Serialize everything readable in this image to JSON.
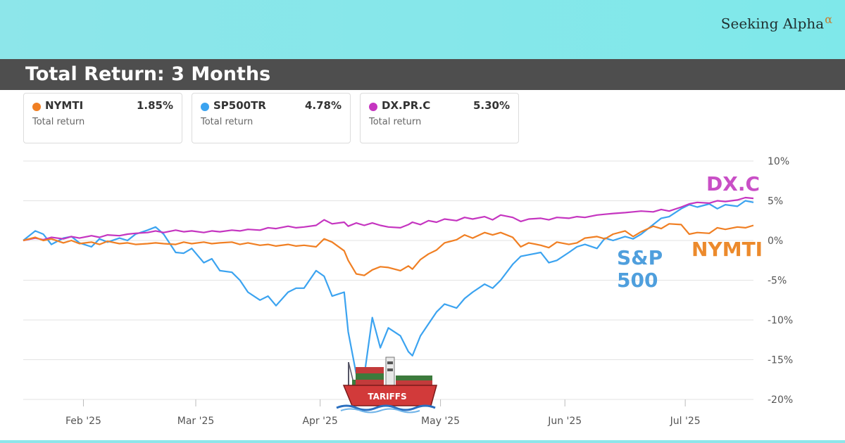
{
  "brand": {
    "name": "Seeking Alpha",
    "symbol": "α"
  },
  "header": {
    "title": "Total Return: 3 Months"
  },
  "cards": [
    {
      "ticker": "NYMTI",
      "value": "1.85%",
      "sublabel": "Total return",
      "color": "#f07f23"
    },
    {
      "ticker": "SP500TR",
      "value": "4.78%",
      "sublabel": "Total return",
      "color": "#3ba3f0"
    },
    {
      "ticker": "DX.PR.C",
      "value": "5.30%",
      "sublabel": "Total return",
      "color": "#c535c0"
    }
  ],
  "annotations": {
    "dxc": "DX.C",
    "nymti": "NYMTI",
    "sp_line1": "S&P",
    "sp_line2": "500",
    "ship": "TARIFFS"
  },
  "chart_data": {
    "type": "line",
    "y_unit": "%",
    "ylim": [
      -20,
      10
    ],
    "yticks": [
      10,
      5,
      0,
      -5,
      -10,
      -15,
      -20
    ],
    "ytick_labels": [
      "10%",
      "5%",
      "0%",
      "-5%",
      "-10%",
      "-15%",
      "-20%"
    ],
    "xlim": [
      "2025-01-17",
      "2025-07-18"
    ],
    "xticks": [
      "2025-02-01",
      "2025-03-01",
      "2025-04-01",
      "2025-05-01",
      "2025-06-01",
      "2025-07-01"
    ],
    "xtick_labels": [
      "Feb '25",
      "Mar '25",
      "Apr '25",
      "May '25",
      "Jun '25",
      "Jul '25"
    ],
    "grid": true,
    "series": [
      {
        "name": "SP500TR",
        "color": "#3ba3f0",
        "points": [
          [
            "2025-01-17",
            0
          ],
          [
            "2025-01-20",
            1.2
          ],
          [
            "2025-01-22",
            0.8
          ],
          [
            "2025-01-24",
            -0.5
          ],
          [
            "2025-01-27",
            0.3
          ],
          [
            "2025-01-29",
            0.5
          ],
          [
            "2025-01-31",
            -0.3
          ],
          [
            "2025-02-03",
            -0.8
          ],
          [
            "2025-02-05",
            0.2
          ],
          [
            "2025-02-07",
            -0.2
          ],
          [
            "2025-02-10",
            0.3
          ],
          [
            "2025-02-12",
            0.0
          ],
          [
            "2025-02-14",
            0.8
          ],
          [
            "2025-02-17",
            1.3
          ],
          [
            "2025-02-19",
            1.7
          ],
          [
            "2025-02-21",
            0.8
          ],
          [
            "2025-02-24",
            -1.5
          ],
          [
            "2025-02-26",
            -1.6
          ],
          [
            "2025-02-28",
            -1.0
          ],
          [
            "2025-03-03",
            -2.8
          ],
          [
            "2025-03-05",
            -2.3
          ],
          [
            "2025-03-07",
            -3.8
          ],
          [
            "2025-03-10",
            -4.0
          ],
          [
            "2025-03-12",
            -5.0
          ],
          [
            "2025-03-14",
            -6.5
          ],
          [
            "2025-03-17",
            -7.5
          ],
          [
            "2025-03-19",
            -7.0
          ],
          [
            "2025-03-21",
            -8.2
          ],
          [
            "2025-03-24",
            -6.5
          ],
          [
            "2025-03-26",
            -6.0
          ],
          [
            "2025-03-28",
            -6.0
          ],
          [
            "2025-03-31",
            -3.8
          ],
          [
            "2025-04-02",
            -4.5
          ],
          [
            "2025-04-04",
            -7.0
          ],
          [
            "2025-04-07",
            -6.5
          ],
          [
            "2025-04-08",
            -11.5
          ],
          [
            "2025-04-10",
            -16.8
          ],
          [
            "2025-04-12",
            -17.0
          ],
          [
            "2025-04-14",
            -9.7
          ],
          [
            "2025-04-16",
            -13.5
          ],
          [
            "2025-04-18",
            -11.0
          ],
          [
            "2025-04-21",
            -12.0
          ],
          [
            "2025-04-23",
            -14.0
          ],
          [
            "2025-04-24",
            -14.5
          ],
          [
            "2025-04-26",
            -12.0
          ],
          [
            "2025-04-28",
            -10.5
          ],
          [
            "2025-04-30",
            -9.0
          ],
          [
            "2025-05-02",
            -8.0
          ],
          [
            "2025-05-05",
            -8.5
          ],
          [
            "2025-05-07",
            -7.3
          ],
          [
            "2025-05-09",
            -6.5
          ],
          [
            "2025-05-12",
            -5.5
          ],
          [
            "2025-05-14",
            -6.0
          ],
          [
            "2025-05-16",
            -5.0
          ],
          [
            "2025-05-19",
            -3.0
          ],
          [
            "2025-05-21",
            -2.0
          ],
          [
            "2025-05-23",
            -1.8
          ],
          [
            "2025-05-26",
            -1.5
          ],
          [
            "2025-05-28",
            -2.8
          ],
          [
            "2025-05-30",
            -2.5
          ],
          [
            "2025-06-02",
            -1.5
          ],
          [
            "2025-06-04",
            -0.8
          ],
          [
            "2025-06-06",
            -0.5
          ],
          [
            "2025-06-09",
            -1.0
          ],
          [
            "2025-06-11",
            0.3
          ],
          [
            "2025-06-13",
            0.0
          ],
          [
            "2025-06-16",
            0.5
          ],
          [
            "2025-06-18",
            0.2
          ],
          [
            "2025-06-20",
            0.8
          ],
          [
            "2025-06-23",
            2.0
          ],
          [
            "2025-06-25",
            2.8
          ],
          [
            "2025-06-27",
            3.0
          ],
          [
            "2025-06-30",
            4.0
          ],
          [
            "2025-07-02",
            4.5
          ],
          [
            "2025-07-04",
            4.2
          ],
          [
            "2025-07-07",
            4.6
          ],
          [
            "2025-07-09",
            4.0
          ],
          [
            "2025-07-11",
            4.5
          ],
          [
            "2025-07-14",
            4.3
          ],
          [
            "2025-07-16",
            5.0
          ],
          [
            "2025-07-18",
            4.8
          ]
        ]
      },
      {
        "name": "DX.PR.C",
        "color": "#c535c0",
        "points": [
          [
            "2025-01-17",
            0
          ],
          [
            "2025-01-20",
            0.3
          ],
          [
            "2025-01-22",
            0.1
          ],
          [
            "2025-01-24",
            0.4
          ],
          [
            "2025-01-27",
            0.2
          ],
          [
            "2025-01-29",
            0.5
          ],
          [
            "2025-01-31",
            0.3
          ],
          [
            "2025-02-03",
            0.6
          ],
          [
            "2025-02-05",
            0.4
          ],
          [
            "2025-02-07",
            0.7
          ],
          [
            "2025-02-10",
            0.6
          ],
          [
            "2025-02-12",
            0.8
          ],
          [
            "2025-02-14",
            0.9
          ],
          [
            "2025-02-17",
            1.0
          ],
          [
            "2025-02-19",
            1.2
          ],
          [
            "2025-02-21",
            1.0
          ],
          [
            "2025-02-24",
            1.3
          ],
          [
            "2025-02-26",
            1.1
          ],
          [
            "2025-02-28",
            1.2
          ],
          [
            "2025-03-03",
            1.0
          ],
          [
            "2025-03-05",
            1.2
          ],
          [
            "2025-03-07",
            1.1
          ],
          [
            "2025-03-10",
            1.3
          ],
          [
            "2025-03-12",
            1.2
          ],
          [
            "2025-03-14",
            1.4
          ],
          [
            "2025-03-17",
            1.3
          ],
          [
            "2025-03-19",
            1.6
          ],
          [
            "2025-03-21",
            1.5
          ],
          [
            "2025-03-24",
            1.8
          ],
          [
            "2025-03-26",
            1.6
          ],
          [
            "2025-03-28",
            1.7
          ],
          [
            "2025-03-31",
            1.9
          ],
          [
            "2025-04-02",
            2.6
          ],
          [
            "2025-04-04",
            2.1
          ],
          [
            "2025-04-07",
            2.3
          ],
          [
            "2025-04-08",
            1.8
          ],
          [
            "2025-04-10",
            2.2
          ],
          [
            "2025-04-12",
            1.9
          ],
          [
            "2025-04-14",
            2.2
          ],
          [
            "2025-04-16",
            1.9
          ],
          [
            "2025-04-18",
            1.7
          ],
          [
            "2025-04-21",
            1.6
          ],
          [
            "2025-04-23",
            2.0
          ],
          [
            "2025-04-24",
            2.3
          ],
          [
            "2025-04-26",
            2.0
          ],
          [
            "2025-04-28",
            2.5
          ],
          [
            "2025-04-30",
            2.3
          ],
          [
            "2025-05-02",
            2.7
          ],
          [
            "2025-05-05",
            2.5
          ],
          [
            "2025-05-07",
            2.9
          ],
          [
            "2025-05-09",
            2.7
          ],
          [
            "2025-05-12",
            3.0
          ],
          [
            "2025-05-14",
            2.6
          ],
          [
            "2025-05-16",
            3.2
          ],
          [
            "2025-05-19",
            2.9
          ],
          [
            "2025-05-21",
            2.4
          ],
          [
            "2025-05-23",
            2.7
          ],
          [
            "2025-05-26",
            2.8
          ],
          [
            "2025-05-28",
            2.6
          ],
          [
            "2025-05-30",
            2.9
          ],
          [
            "2025-06-02",
            2.8
          ],
          [
            "2025-06-04",
            3.0
          ],
          [
            "2025-06-06",
            2.9
          ],
          [
            "2025-06-09",
            3.2
          ],
          [
            "2025-06-11",
            3.3
          ],
          [
            "2025-06-13",
            3.4
          ],
          [
            "2025-06-16",
            3.5
          ],
          [
            "2025-06-18",
            3.6
          ],
          [
            "2025-06-20",
            3.7
          ],
          [
            "2025-06-23",
            3.6
          ],
          [
            "2025-06-25",
            3.9
          ],
          [
            "2025-06-27",
            3.7
          ],
          [
            "2025-06-30",
            4.2
          ],
          [
            "2025-07-02",
            4.6
          ],
          [
            "2025-07-04",
            4.8
          ],
          [
            "2025-07-07",
            4.7
          ],
          [
            "2025-07-09",
            5.0
          ],
          [
            "2025-07-11",
            4.9
          ],
          [
            "2025-07-14",
            5.1
          ],
          [
            "2025-07-16",
            5.4
          ],
          [
            "2025-07-18",
            5.3
          ]
        ]
      },
      {
        "name": "NYMTI",
        "color": "#f07f23",
        "points": [
          [
            "2025-01-17",
            0
          ],
          [
            "2025-01-20",
            0.4
          ],
          [
            "2025-01-22",
            0.0
          ],
          [
            "2025-01-24",
            0.2
          ],
          [
            "2025-01-27",
            -0.3
          ],
          [
            "2025-01-29",
            0.0
          ],
          [
            "2025-01-31",
            -0.4
          ],
          [
            "2025-02-03",
            -0.2
          ],
          [
            "2025-02-05",
            -0.5
          ],
          [
            "2025-02-07",
            -0.1
          ],
          [
            "2025-02-10",
            -0.4
          ],
          [
            "2025-02-12",
            -0.3
          ],
          [
            "2025-02-14",
            -0.5
          ],
          [
            "2025-02-17",
            -0.4
          ],
          [
            "2025-02-19",
            -0.3
          ],
          [
            "2025-02-21",
            -0.4
          ],
          [
            "2025-02-24",
            -0.5
          ],
          [
            "2025-02-26",
            -0.2
          ],
          [
            "2025-02-28",
            -0.4
          ],
          [
            "2025-03-03",
            -0.2
          ],
          [
            "2025-03-05",
            -0.4
          ],
          [
            "2025-03-07",
            -0.3
          ],
          [
            "2025-03-10",
            -0.2
          ],
          [
            "2025-03-12",
            -0.5
          ],
          [
            "2025-03-14",
            -0.3
          ],
          [
            "2025-03-17",
            -0.6
          ],
          [
            "2025-03-19",
            -0.5
          ],
          [
            "2025-03-21",
            -0.7
          ],
          [
            "2025-03-24",
            -0.5
          ],
          [
            "2025-03-26",
            -0.7
          ],
          [
            "2025-03-28",
            -0.6
          ],
          [
            "2025-03-31",
            -0.8
          ],
          [
            "2025-04-02",
            0.2
          ],
          [
            "2025-04-04",
            -0.2
          ],
          [
            "2025-04-07",
            -1.3
          ],
          [
            "2025-04-08",
            -2.5
          ],
          [
            "2025-04-10",
            -4.2
          ],
          [
            "2025-04-12",
            -4.4
          ],
          [
            "2025-04-14",
            -3.7
          ],
          [
            "2025-04-16",
            -3.3
          ],
          [
            "2025-04-18",
            -3.4
          ],
          [
            "2025-04-21",
            -3.8
          ],
          [
            "2025-04-23",
            -3.2
          ],
          [
            "2025-04-24",
            -3.6
          ],
          [
            "2025-04-26",
            -2.4
          ],
          [
            "2025-04-28",
            -1.7
          ],
          [
            "2025-04-30",
            -1.2
          ],
          [
            "2025-05-02",
            -0.3
          ],
          [
            "2025-05-05",
            0.1
          ],
          [
            "2025-05-07",
            0.7
          ],
          [
            "2025-05-09",
            0.3
          ],
          [
            "2025-05-12",
            1.0
          ],
          [
            "2025-05-14",
            0.7
          ],
          [
            "2025-05-16",
            1.0
          ],
          [
            "2025-05-19",
            0.4
          ],
          [
            "2025-05-21",
            -0.8
          ],
          [
            "2025-05-23",
            -0.3
          ],
          [
            "2025-05-26",
            -0.6
          ],
          [
            "2025-05-28",
            -0.9
          ],
          [
            "2025-05-30",
            -0.2
          ],
          [
            "2025-06-02",
            -0.5
          ],
          [
            "2025-06-04",
            -0.3
          ],
          [
            "2025-06-06",
            0.3
          ],
          [
            "2025-06-09",
            0.5
          ],
          [
            "2025-06-11",
            0.2
          ],
          [
            "2025-06-13",
            0.8
          ],
          [
            "2025-06-16",
            1.2
          ],
          [
            "2025-06-18",
            0.5
          ],
          [
            "2025-06-20",
            1.1
          ],
          [
            "2025-06-23",
            1.8
          ],
          [
            "2025-06-25",
            1.5
          ],
          [
            "2025-06-27",
            2.1
          ],
          [
            "2025-06-30",
            2.0
          ],
          [
            "2025-07-02",
            0.8
          ],
          [
            "2025-07-04",
            1.0
          ],
          [
            "2025-07-07",
            0.9
          ],
          [
            "2025-07-09",
            1.6
          ],
          [
            "2025-07-11",
            1.4
          ],
          [
            "2025-07-14",
            1.7
          ],
          [
            "2025-07-16",
            1.6
          ],
          [
            "2025-07-18",
            1.9
          ]
        ]
      }
    ]
  }
}
